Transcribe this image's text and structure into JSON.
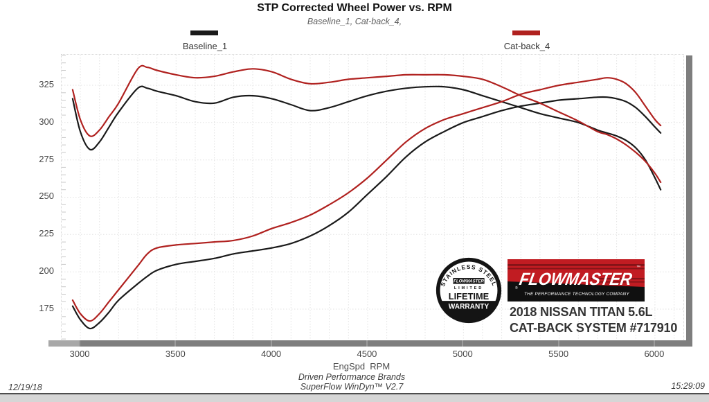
{
  "header": {
    "title": "STP Corrected Wheel Power vs. RPM",
    "subtitle": "Baseline_1, Cat-back_4,"
  },
  "legend": {
    "items": [
      {
        "label": "Baseline_1",
        "color": "#1a1a1a"
      },
      {
        "label": "Cat-back_4",
        "color": "#b0211f"
      }
    ]
  },
  "chart_data": {
    "type": "line",
    "title": "STP Corrected Wheel Power vs. RPM",
    "xlabel": "EngSpd  RPM",
    "ylabel": "",
    "x_ticks": [
      3000,
      3500,
      4000,
      4500,
      5000,
      5500,
      6000
    ],
    "y_ticks": [
      325,
      300,
      275,
      250,
      225,
      200,
      175
    ],
    "xlim": [
      2900,
      6160
    ],
    "ylim": [
      154,
      345
    ],
    "grid": "light dotted, every 100 RPM horizontal, every 25 vertical, minor y ticks every 5",
    "legend_position": "top",
    "x": [
      2960,
      3000,
      3050,
      3100,
      3150,
      3200,
      3300,
      3350,
      3400,
      3500,
      3600,
      3700,
      3800,
      3900,
      4000,
      4100,
      4200,
      4300,
      4400,
      4500,
      4600,
      4700,
      4800,
      4900,
      5000,
      5100,
      5200,
      5300,
      5400,
      5500,
      5600,
      5700,
      5750,
      5800,
      5850,
      5900,
      5950,
      6000,
      6030
    ],
    "series": [
      {
        "name": "Baseline_1 upper trace",
        "color": "#1a1a1a",
        "values": [
          316,
          294,
          282,
          287,
          297,
          307,
          323,
          323,
          321,
          318,
          314,
          313,
          317,
          318,
          316,
          312,
          308,
          310,
          314,
          318,
          321,
          323,
          324,
          324,
          322,
          318,
          314,
          310,
          306,
          303,
          300,
          295,
          293,
          291,
          288,
          283,
          275,
          263,
          255
        ]
      },
      {
        "name": "Baseline_1 lower trace",
        "color": "#1a1a1a",
        "values": [
          177,
          168,
          162,
          166,
          173,
          181,
          192,
          197,
          201,
          205,
          207,
          209,
          212,
          214,
          216,
          219,
          224,
          231,
          240,
          252,
          264,
          277,
          287,
          294,
          300,
          304,
          308,
          311,
          313,
          315,
          316,
          317,
          317,
          316,
          314,
          310,
          304,
          297,
          293
        ]
      },
      {
        "name": "Cat-back_4 upper trace",
        "color": "#b0211f",
        "values": [
          322,
          302,
          291,
          295,
          304,
          313,
          336,
          337,
          335,
          332,
          330,
          331,
          334,
          336,
          334,
          329,
          326,
          327,
          329,
          330,
          331,
          332,
          332,
          332,
          331,
          329,
          324,
          318,
          313,
          307,
          301,
          294,
          292,
          289,
          285,
          280,
          274,
          266,
          260
        ]
      },
      {
        "name": "Cat-back_4 lower trace",
        "color": "#b0211f",
        "values": [
          181,
          172,
          167,
          172,
          180,
          188,
          204,
          212,
          216,
          218,
          219,
          220,
          221,
          224,
          229,
          233,
          238,
          245,
          253,
          263,
          275,
          287,
          296,
          302,
          306,
          310,
          314,
          319,
          322,
          325,
          327,
          329,
          330,
          329,
          326,
          320,
          311,
          302,
          298
        ]
      }
    ]
  },
  "axis": {
    "x_title": "EngSpd  RPM"
  },
  "footer": {
    "brand_line": "Driven Performance Brands",
    "software_line": "SuperFlow WinDyn™ V2.7",
    "date": "12/19/18",
    "time": "15:29:09"
  },
  "badge": {
    "arc_text": "STAINLESS STEEL",
    "brand": "FLOWMASTER",
    "limited": "LIMITED",
    "lifetime": "LIFETIME",
    "warranty": "WARRANTY"
  },
  "logo": {
    "brand": "FLOWMASTER",
    "tm": "™",
    "registered": "®",
    "tagline": "THE PERFORMANCE TECHNOLOGY COMPANY",
    "bg": "#c11c22"
  },
  "vehicle": {
    "line1": "2018 NISSAN TITAN 5.6L",
    "line2": "CAT-BACK SYSTEM #717910"
  }
}
